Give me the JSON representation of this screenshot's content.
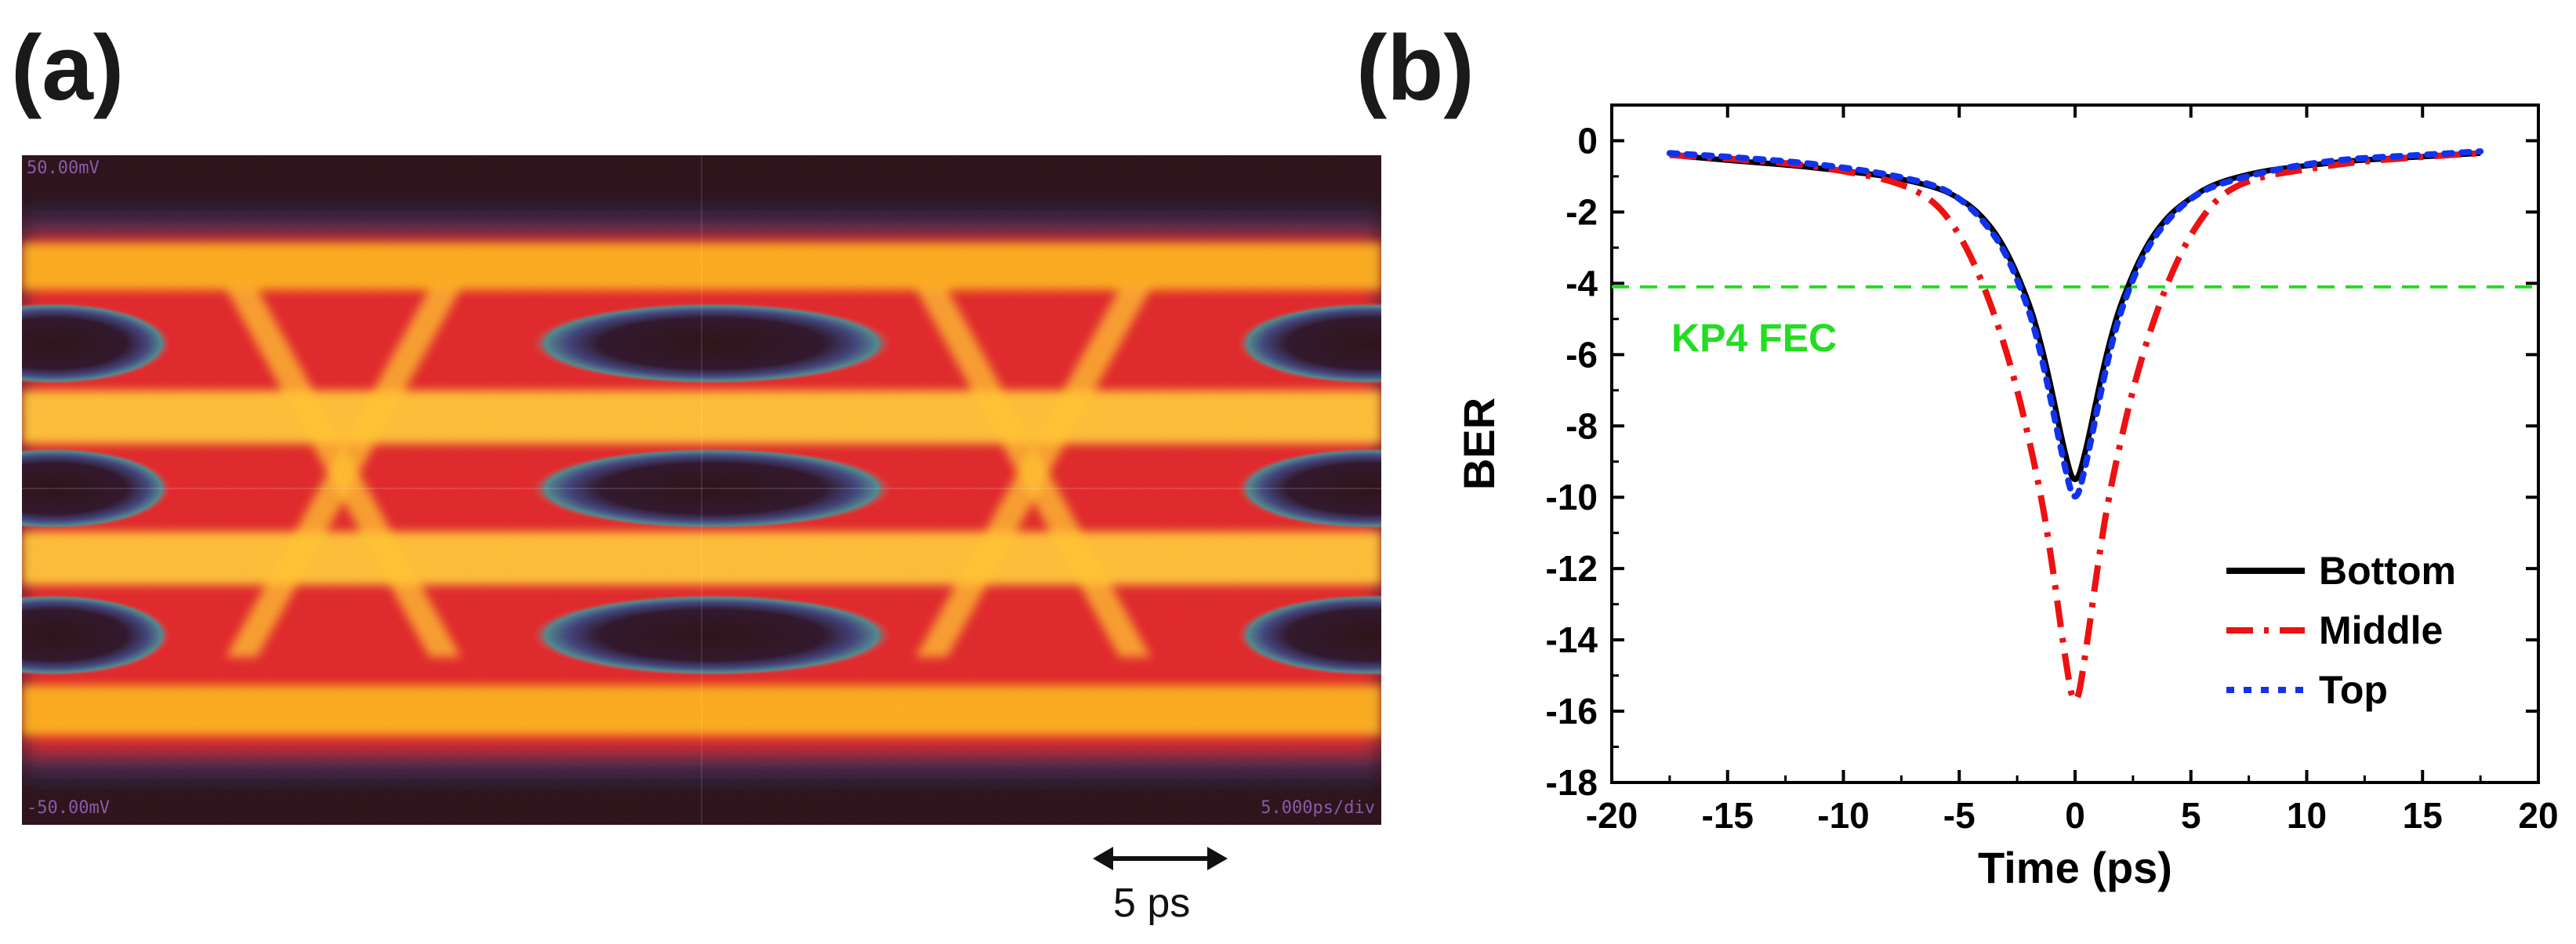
{
  "panel_a": {
    "label": "(a)",
    "osc_top_label": "50.00mV",
    "osc_bottom_label": "-50.00mV",
    "osc_right_label": "5.000ps/div",
    "scale_bar_label": "5 ps"
  },
  "panel_b": {
    "label": "(b)"
  },
  "chart_data": [
    {
      "type": "image",
      "panel": "a",
      "description_labels": [
        "50.00mV",
        "-50.00mV",
        "5.000ps/div",
        "5 ps"
      ]
    },
    {
      "type": "line",
      "panel": "b",
      "xlabel": "Time (ps)",
      "ylabel": "BER",
      "xlim": [
        -20,
        20
      ],
      "ylim": [
        -18,
        1
      ],
      "xticks": [
        -20,
        -15,
        -10,
        -5,
        0,
        5,
        10,
        15,
        20
      ],
      "yticks": [
        0,
        -2,
        -4,
        -6,
        -8,
        -10,
        -12,
        -14,
        -16,
        -18
      ],
      "grid": false,
      "legend": "bottom-right",
      "threshold": {
        "label": "KP4 FEC",
        "y": -4.1,
        "color": "#22dd22"
      },
      "series": [
        {
          "name": "Bottom",
          "color": "#000000",
          "style": "solid",
          "x": [
            -17.5,
            -15,
            -12,
            -10,
            -8,
            -6,
            -5,
            -4,
            -3,
            -2,
            -1.5,
            -1,
            -0.5,
            0,
            0.5,
            1,
            1.5,
            2,
            3,
            4,
            5,
            6,
            8,
            10,
            12,
            15,
            17.5
          ],
          "y": [
            -0.4,
            -0.55,
            -0.7,
            -0.85,
            -1.0,
            -1.3,
            -1.6,
            -2.1,
            -3.0,
            -4.5,
            -5.6,
            -7.0,
            -8.6,
            -9.8,
            -8.6,
            -7.0,
            -5.6,
            -4.5,
            -3.0,
            -2.1,
            -1.6,
            -1.2,
            -0.85,
            -0.7,
            -0.55,
            -0.45,
            -0.35
          ]
        },
        {
          "name": "Middle",
          "color": "#ee1111",
          "style": "dashdot",
          "x": [
            -17.5,
            -15,
            -12,
            -10,
            -8,
            -6.5,
            -5.5,
            -4.5,
            -3.5,
            -2.5,
            -1.5,
            -1,
            -0.5,
            0,
            0.5,
            1,
            1.5,
            2.5,
            3.5,
            4.5,
            5.5,
            6.5,
            8,
            10,
            12,
            15,
            17.5
          ],
          "y": [
            -0.4,
            -0.5,
            -0.65,
            -0.85,
            -1.1,
            -1.5,
            -2.1,
            -3.2,
            -4.8,
            -6.9,
            -9.8,
            -11.8,
            -14.2,
            -16.2,
            -14.2,
            -11.8,
            -9.8,
            -6.9,
            -4.8,
            -3.2,
            -2.1,
            -1.4,
            -1.0,
            -0.8,
            -0.6,
            -0.45,
            -0.35
          ]
        },
        {
          "name": "Top",
          "color": "#1133ee",
          "style": "dotted",
          "x": [
            -17.5,
            -15,
            -12,
            -10,
            -8,
            -6,
            -5,
            -4,
            -3,
            -2,
            -1.5,
            -1,
            -0.5,
            0,
            0.5,
            1,
            1.5,
            2,
            3,
            4,
            5,
            6,
            8,
            10,
            12,
            15,
            17.5
          ],
          "y": [
            -0.35,
            -0.45,
            -0.6,
            -0.75,
            -0.95,
            -1.25,
            -1.6,
            -2.2,
            -3.1,
            -4.7,
            -5.9,
            -7.4,
            -9.0,
            -10.3,
            -9.0,
            -7.4,
            -5.9,
            -4.7,
            -3.1,
            -2.2,
            -1.6,
            -1.25,
            -0.9,
            -0.65,
            -0.5,
            -0.4,
            -0.3
          ]
        }
      ]
    }
  ]
}
